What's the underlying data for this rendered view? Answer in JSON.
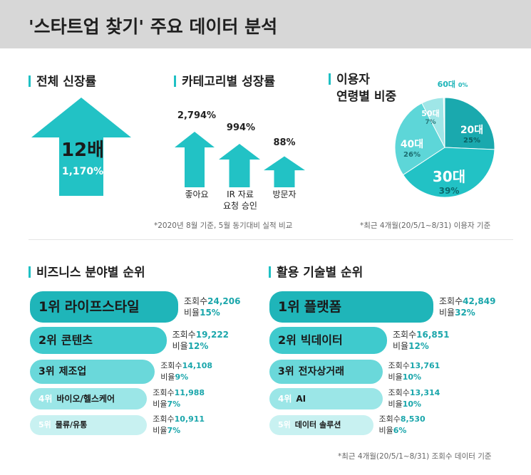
{
  "header": {
    "title": "'스타트업 찾기' 주요 데이터 분석"
  },
  "growth": {
    "heading": "전체 신장률",
    "multiple": "12배",
    "percent": "1,170%"
  },
  "category": {
    "heading": "카테고리별 성장률",
    "note": "*2020년 8월 기준, 5월 동기대비 실적 비교",
    "items": [
      {
        "pct": "2,794%",
        "name_line1": "좋아요",
        "name_line2": "",
        "value": 2794
      },
      {
        "pct": "994%",
        "name_line1": "IR 자료",
        "name_line2": "요청 승인",
        "value": 994
      },
      {
        "pct": "88%",
        "name_line1": "방문자",
        "name_line2": "",
        "value": 88
      }
    ]
  },
  "age": {
    "heading_line1": "이용자",
    "heading_line2": "연령별 비중",
    "note": "*최근 4개월(20/5/1~8/31) 이용자 기준",
    "slices": [
      {
        "label": "20대",
        "pct": "25%",
        "value": 25,
        "color": "#1aa9ae"
      },
      {
        "label": "30대",
        "pct": "39%",
        "value": 39,
        "color": "#22c2c5"
      },
      {
        "label": "40대",
        "pct": "26%",
        "value": 26,
        "color": "#5dd6d8"
      },
      {
        "label": "50대",
        "pct": "7%",
        "value": 7,
        "color": "#9fe6e7"
      },
      {
        "label": "60대",
        "pct": "0%",
        "value": 0.4,
        "color": "#d4f4f4"
      }
    ]
  },
  "business": {
    "heading": "비즈니스 분야별 순위",
    "items": [
      {
        "rank": "1위",
        "name": "라이프스타일",
        "views_label": "조회수",
        "views": "24,206",
        "ratio_label": "비율",
        "ratio": "15%",
        "ratio_value": 15,
        "color": "#1fb5b9"
      },
      {
        "rank": "2위",
        "name": "콘텐츠",
        "views_label": "조회수",
        "views": "19,222",
        "ratio_label": "비율",
        "ratio": "12%",
        "ratio_value": 12,
        "color": "#3fcacd"
      },
      {
        "rank": "3위",
        "name": "제조업",
        "views_label": "조회수",
        "views": "14,108",
        "ratio_label": "비율",
        "ratio": "9%",
        "ratio_value": 9,
        "color": "#6ad8da"
      },
      {
        "rank": "4위",
        "name": "바이오/헬스케어",
        "views_label": "조회수",
        "views": "11,988",
        "ratio_label": "비율",
        "ratio": "7%",
        "ratio_value": 7,
        "color": "#9be6e7"
      },
      {
        "rank": "5위",
        "name": "물류/유통",
        "views_label": "조회수",
        "views": "10,911",
        "ratio_label": "비율",
        "ratio": "7%",
        "ratio_value": 7,
        "color": "#c8f1f1"
      }
    ]
  },
  "technology": {
    "heading": "활용 기술별 순위",
    "note": "*최근 4개월(20/5/1~8/31) 조회수 데이터 기준",
    "items": [
      {
        "rank": "1위",
        "name": "플랫폼",
        "views_label": "조회수",
        "views": "42,849",
        "ratio_label": "비율",
        "ratio": "32%",
        "ratio_value": 32,
        "color": "#1fb5b9"
      },
      {
        "rank": "2위",
        "name": "빅데이터",
        "views_label": "조회수",
        "views": "16,851",
        "ratio_label": "비율",
        "ratio": "12%",
        "ratio_value": 12,
        "color": "#3fcacd"
      },
      {
        "rank": "3위",
        "name": "전자상거래",
        "views_label": "조회수",
        "views": "13,761",
        "ratio_label": "비율",
        "ratio": "10%",
        "ratio_value": 10,
        "color": "#6ad8da"
      },
      {
        "rank": "4위",
        "name": "AI",
        "views_label": "조회수",
        "views": "13,314",
        "ratio_label": "비율",
        "ratio": "10%",
        "ratio_value": 10,
        "color": "#9be6e7"
      },
      {
        "rank": "5위",
        "name": "데이터 솔루션",
        "views_label": "조회수",
        "views": "8,530",
        "ratio_label": "비율",
        "ratio": "6%",
        "ratio_value": 6,
        "color": "#c8f1f1"
      }
    ]
  },
  "chart_data": [
    {
      "type": "bar",
      "title": "카테고리별 성장률",
      "categories": [
        "좋아요",
        "IR 자료 요청 승인",
        "방문자"
      ],
      "values": [
        2794,
        994,
        88
      ],
      "unit": "%"
    },
    {
      "type": "pie",
      "title": "이용자 연령별 비중",
      "categories": [
        "20대",
        "30대",
        "40대",
        "50대",
        "60대"
      ],
      "values": [
        25,
        39,
        26,
        7,
        0
      ],
      "unit": "%"
    },
    {
      "type": "bar",
      "title": "비즈니스 분야별 순위",
      "categories": [
        "라이프스타일",
        "콘텐츠",
        "제조업",
        "바이오/헬스케어",
        "물류/유통"
      ],
      "series": [
        {
          "name": "조회수",
          "values": [
            24206,
            19222,
            14108,
            11988,
            10911
          ]
        },
        {
          "name": "비율",
          "values": [
            15,
            12,
            9,
            7,
            7
          ]
        }
      ]
    },
    {
      "type": "bar",
      "title": "활용 기술별 순위",
      "categories": [
        "플랫폼",
        "빅데이터",
        "전자상거래",
        "AI",
        "데이터 솔루션"
      ],
      "series": [
        {
          "name": "조회수",
          "values": [
            42849,
            16851,
            13761,
            13314,
            8530
          ]
        },
        {
          "name": "비율",
          "values": [
            32,
            12,
            10,
            10,
            6
          ]
        }
      ]
    }
  ]
}
